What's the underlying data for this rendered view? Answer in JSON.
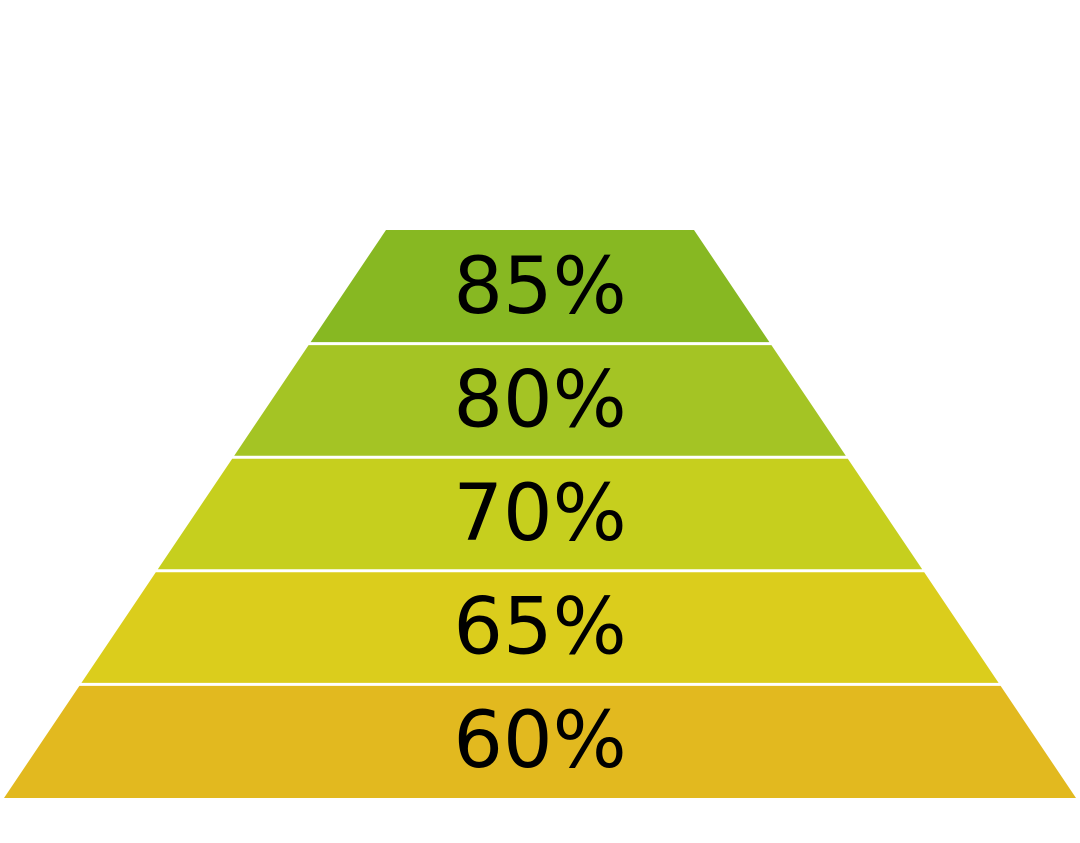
{
  "pyramid": {
    "levels": [
      {
        "label": "85%",
        "color": "#87b822"
      },
      {
        "label": "80%",
        "color": "#a4c424"
      },
      {
        "label": "70%",
        "color": "#c6cf1e"
      },
      {
        "label": "65%",
        "color": "#dbcd1c"
      },
      {
        "label": "60%",
        "color": "#e2b91f"
      }
    ]
  }
}
